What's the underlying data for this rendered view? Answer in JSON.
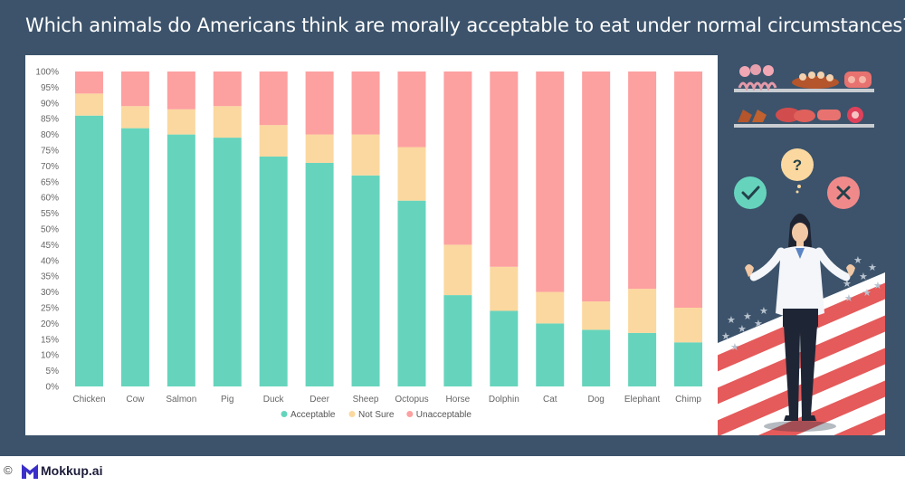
{
  "title": "Which animals do Americans think are morally acceptable to eat under normal circumstances?",
  "footer": {
    "copyright": "©",
    "brand": "Mokkup.ai"
  },
  "colors": {
    "banner": "#3c536b",
    "acceptable": "#66d4bd",
    "not_sure": "#fbd89f",
    "unacceptable": "#fda0a0"
  },
  "illustration": {
    "question_mark": "?"
  },
  "chart_data": {
    "type": "bar",
    "stacked": true,
    "categories": [
      "Chicken",
      "Cow",
      "Salmon",
      "Pig",
      "Duck",
      "Deer",
      "Sheep",
      "Octopus",
      "Horse",
      "Dolphin",
      "Cat",
      "Dog",
      "Elephant",
      "Chimp"
    ],
    "series": [
      {
        "name": "Acceptable",
        "color": "#66d4bd",
        "values": [
          86,
          82,
          80,
          79,
          73,
          71,
          67,
          59,
          29,
          24,
          20,
          18,
          17,
          14
        ]
      },
      {
        "name": "Not Sure",
        "color": "#fbd89f",
        "values": [
          7,
          7,
          8,
          10,
          10,
          9,
          13,
          17,
          16,
          14,
          10,
          9,
          14,
          11
        ]
      },
      {
        "name": "Unacceptable",
        "color": "#fda0a0",
        "values": [
          7,
          11,
          12,
          11,
          17,
          20,
          20,
          24,
          55,
          62,
          70,
          73,
          69,
          75
        ]
      }
    ],
    "y_ticks": [
      "0%",
      "5%",
      "10%",
      "15%",
      "20%",
      "25%",
      "30%",
      "35%",
      "40%",
      "45%",
      "50%",
      "55%",
      "60%",
      "65%",
      "70%",
      "75%",
      "80%",
      "85%",
      "90%",
      "95%",
      "100%"
    ],
    "ylim": [
      0,
      100
    ],
    "grid": false,
    "legend_position": "bottom"
  }
}
